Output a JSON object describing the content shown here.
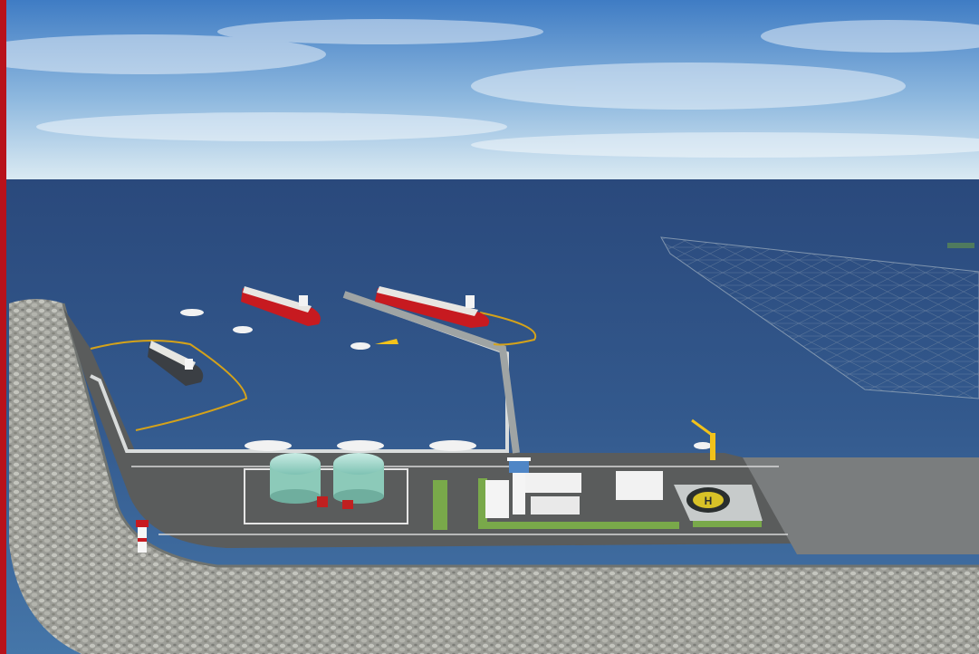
{
  "scene": {
    "subject": "",
    "colors": {
      "accent_bar": "#b8121b",
      "sky_top": "#4d86c9",
      "sky_horizon": "#dbeaf3",
      "sea_far": "#2e4f83",
      "sea_near": "#3a6aa0",
      "breakwater": "#a9aaa4",
      "tanker_hull": "#c71a20",
      "deck": "#5d5f5f",
      "grass": "#79a94a",
      "helipad": "#2a2f2f",
      "crane": "#f2c21a"
    },
    "icons": [
      "tanker-ship",
      "tugboat",
      "storage-tank",
      "control-tower",
      "helipad",
      "lighthouse",
      "crane",
      "pier"
    ]
  }
}
